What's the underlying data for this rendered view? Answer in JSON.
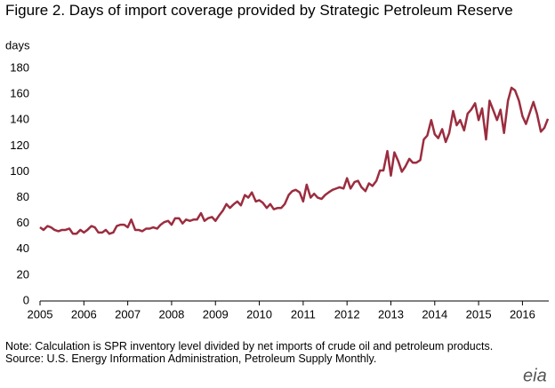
{
  "chart_data": {
    "type": "line",
    "title": "Figure 2. Days of import coverage provided by Strategic Petroleum Reserve",
    "y_label": "days",
    "notes": [
      "Note: Calculation is SPR inventory level divided by net imports of crude oil and petroleum products.",
      "Source: U.S. Energy Information Administration, Petroleum Supply Monthly."
    ],
    "watermark": "eia",
    "xlim": [
      2005,
      2016.6
    ],
    "xticks": [
      2005,
      2006,
      2007,
      2008,
      2009,
      2010,
      2011,
      2012,
      2013,
      2014,
      2015,
      2016
    ],
    "ylim": [
      0,
      180
    ],
    "yticks": [
      0,
      20,
      40,
      60,
      80,
      100,
      120,
      140,
      160,
      180
    ],
    "grid": false,
    "x": [
      2005,
      2005.08,
      2005.17,
      2005.25,
      2005.33,
      2005.42,
      2005.5,
      2005.58,
      2005.67,
      2005.75,
      2005.83,
      2005.92,
      2006,
      2006.08,
      2006.17,
      2006.25,
      2006.33,
      2006.42,
      2006.5,
      2006.58,
      2006.67,
      2006.75,
      2006.83,
      2006.92,
      2007,
      2007.08,
      2007.17,
      2007.25,
      2007.33,
      2007.42,
      2007.5,
      2007.58,
      2007.67,
      2007.75,
      2007.83,
      2007.92,
      2008,
      2008.08,
      2008.17,
      2008.25,
      2008.33,
      2008.42,
      2008.5,
      2008.58,
      2008.67,
      2008.75,
      2008.83,
      2008.92,
      2009,
      2009.08,
      2009.17,
      2009.25,
      2009.33,
      2009.42,
      2009.5,
      2009.58,
      2009.67,
      2009.75,
      2009.83,
      2009.92,
      2010,
      2010.08,
      2010.17,
      2010.25,
      2010.33,
      2010.42,
      2010.5,
      2010.58,
      2010.67,
      2010.75,
      2010.83,
      2010.92,
      2011,
      2011.08,
      2011.17,
      2011.25,
      2011.33,
      2011.42,
      2011.5,
      2011.58,
      2011.67,
      2011.75,
      2011.83,
      2011.92,
      2012,
      2012.08,
      2012.17,
      2012.25,
      2012.33,
      2012.42,
      2012.5,
      2012.58,
      2012.67,
      2012.75,
      2012.83,
      2012.92,
      2013,
      2013.08,
      2013.17,
      2013.25,
      2013.33,
      2013.42,
      2013.5,
      2013.58,
      2013.67,
      2013.75,
      2013.83,
      2013.92,
      2014,
      2014.08,
      2014.17,
      2014.25,
      2014.33,
      2014.42,
      2014.5,
      2014.58,
      2014.67,
      2014.75,
      2014.83,
      2014.92,
      2015,
      2015.08,
      2015.17,
      2015.25,
      2015.33,
      2015.42,
      2015.5,
      2015.58,
      2015.67,
      2015.75,
      2015.83,
      2015.92,
      2016,
      2016.08,
      2016.17,
      2016.25,
      2016.33,
      2016.42,
      2016.5,
      2016.58
    ],
    "series": [
      {
        "color": "#9b2d3f",
        "values": [
          57,
          55,
          58,
          57,
          55,
          54,
          55,
          55,
          56,
          52,
          52,
          55,
          53,
          55,
          58,
          57,
          53,
          53,
          55,
          52,
          53,
          58,
          59,
          59,
          57,
          63,
          55,
          55,
          54,
          56,
          56,
          57,
          56,
          59,
          61,
          62,
          59,
          64,
          64,
          60,
          63,
          62,
          63,
          63,
          68,
          62,
          64,
          65,
          62,
          66,
          70,
          75,
          72,
          75,
          77,
          74,
          82,
          80,
          84,
          77,
          78,
          76,
          72,
          75,
          71,
          72,
          72,
          75,
          82,
          85,
          86,
          84,
          77,
          90,
          80,
          83,
          80,
          79,
          82,
          84,
          86,
          87,
          88,
          87,
          95,
          87,
          92,
          93,
          88,
          85,
          91,
          89,
          93,
          101,
          101,
          116,
          97,
          115,
          108,
          100,
          104,
          110,
          107,
          107,
          109,
          125,
          128,
          140,
          129,
          126,
          133,
          123,
          130,
          147,
          136,
          140,
          132,
          145,
          148,
          153,
          140,
          149,
          125,
          155,
          148,
          140,
          148,
          130,
          155,
          165,
          163,
          155,
          143,
          137,
          146,
          154,
          145,
          131,
          134,
          141
        ]
      }
    ]
  }
}
